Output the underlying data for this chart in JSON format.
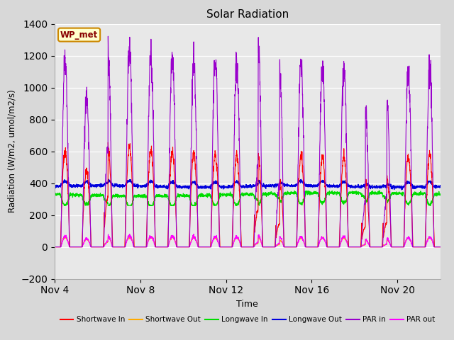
{
  "title": "Solar Radiation",
  "xlabel": "Time",
  "ylabel": "Radiation (W/m2, umol/m2/s)",
  "ylim": [
    -200,
    1400
  ],
  "yticks": [
    -200,
    0,
    200,
    400,
    600,
    800,
    1000,
    1200,
    1400
  ],
  "xtick_labels": [
    "Nov 4",
    "Nov 8",
    "Nov 12",
    "Nov 16",
    "Nov 20"
  ],
  "xtick_positions": [
    0,
    4,
    8,
    12,
    16
  ],
  "fig_bg_color": "#d8d8d8",
  "plot_bg_color": "#e8e8e8",
  "label_box_text": "WP_met",
  "label_box_facecolor": "#ffffcc",
  "label_box_edgecolor": "#cc8800",
  "legend_entries": [
    {
      "label": "Shortwave In",
      "color": "#ff0000"
    },
    {
      "label": "Shortwave Out",
      "color": "#ffaa00"
    },
    {
      "label": "Longwave In",
      "color": "#00dd00"
    },
    {
      "label": "Longwave Out",
      "color": "#0000dd"
    },
    {
      "label": "PAR in",
      "color": "#9900cc"
    },
    {
      "label": "PAR out",
      "color": "#ff00ff"
    }
  ],
  "n_days": 18,
  "figsize": [
    6.4,
    4.8
  ],
  "dpi": 100
}
